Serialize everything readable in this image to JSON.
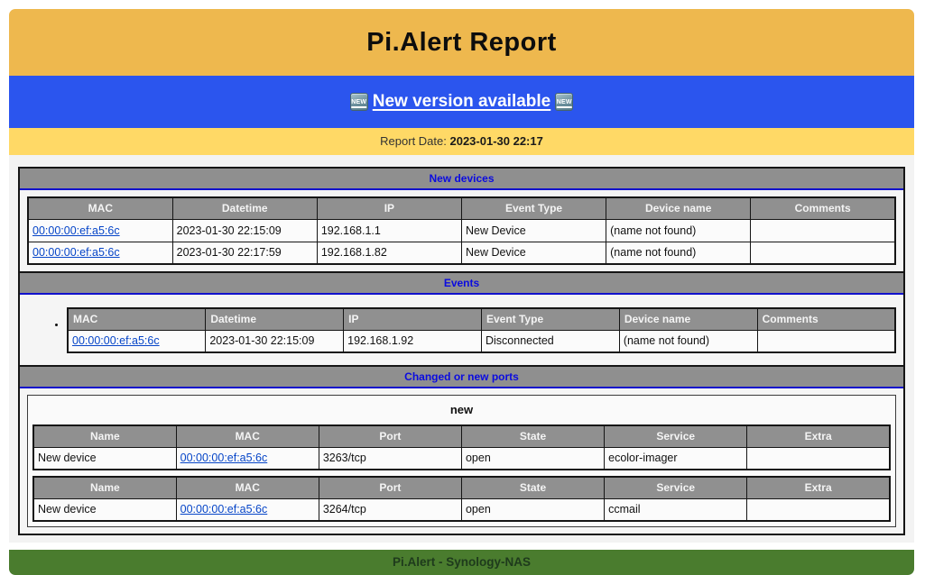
{
  "header": {
    "title": "Pi.Alert Report"
  },
  "version_banner": {
    "link_label": "New version available",
    "badge_label": "NEW"
  },
  "report_date": {
    "label": "Report Date: ",
    "value": "2023-01-30 22:17"
  },
  "sections": {
    "new_devices": {
      "title": "New devices",
      "columns": [
        "MAC",
        "Datetime",
        "IP",
        "Event Type",
        "Device name",
        "Comments"
      ],
      "link_columns": [
        0
      ],
      "rows": [
        [
          "00:00:00:ef:a5:6c",
          "2023-01-30 22:15:09",
          "192.168.1.1",
          "New Device",
          "(name not found)",
          ""
        ],
        [
          "00:00:00:ef:a5:6c",
          "2023-01-30 22:17:59",
          "192.168.1.82",
          "New Device",
          "(name not found)",
          ""
        ]
      ]
    },
    "events": {
      "title": "Events",
      "columns": [
        "MAC",
        "Datetime",
        "IP",
        "Event Type",
        "Device name",
        "Comments"
      ],
      "link_columns": [
        0
      ],
      "rows": [
        [
          "00:00:00:ef:a5:6c",
          "2023-01-30 22:15:09",
          "192.168.1.92",
          "Disconnected",
          "(name not found)",
          ""
        ]
      ]
    },
    "ports": {
      "title": "Changed or new ports",
      "group_title": "new",
      "tables": [
        {
          "columns": [
            "Name",
            "MAC",
            "Port",
            "State",
            "Service",
            "Extra"
          ],
          "link_columns": [
            1
          ],
          "rows": [
            [
              "New device",
              "00:00:00:ef:a5:6c",
              "3263/tcp",
              "open",
              "ecolor-imager",
              ""
            ]
          ]
        },
        {
          "columns": [
            "Name",
            "MAC",
            "Port",
            "State",
            "Service",
            "Extra"
          ],
          "link_columns": [
            1
          ],
          "rows": [
            [
              "New device",
              "00:00:00:ef:a5:6c",
              "3264/tcp",
              "open",
              "ccmail",
              ""
            ]
          ]
        }
      ]
    }
  },
  "footer": {
    "label": "Pi.Alert - Synology-NAS"
  },
  "colors": {
    "masthead_orange": "#eeb84e",
    "banner_blue": "#2b55ee",
    "date_yellow": "#ffd966",
    "section_gray": "#8f8f8f",
    "section_title_blue": "#0b0be0",
    "link_blue": "#0645c8",
    "footer_green": "#4a7c2e",
    "border_black": "#151515"
  }
}
